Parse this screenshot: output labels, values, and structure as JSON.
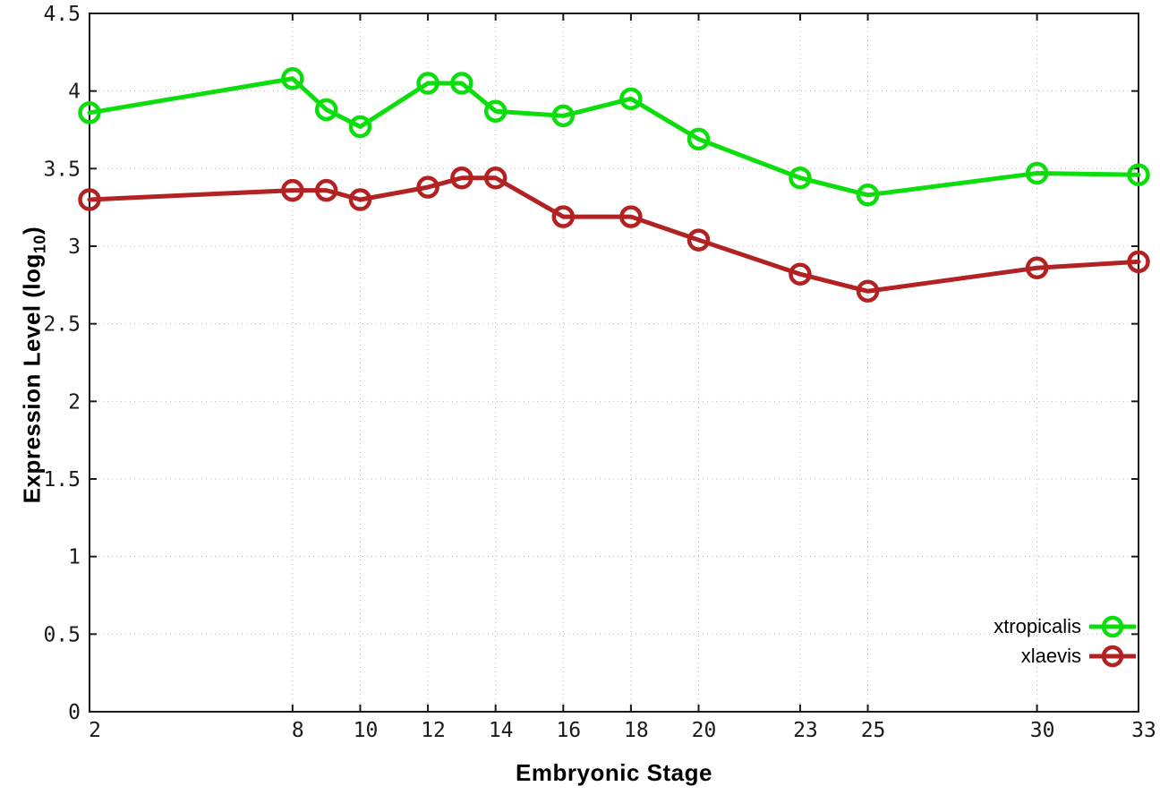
{
  "chart_data": {
    "type": "line",
    "title": "",
    "xlabel": "Embryonic Stage",
    "ylabel": {
      "prefix": "Expression Level (log",
      "subscript": "10",
      "suffix": ")"
    },
    "xlim": [
      2,
      33
    ],
    "ylim": [
      0,
      4.5
    ],
    "xticks": [
      2,
      8,
      10,
      12,
      14,
      16,
      18,
      20,
      23,
      25,
      30,
      33
    ],
    "yticks": [
      0,
      0.5,
      1,
      1.5,
      2,
      2.5,
      3,
      3.5,
      4,
      4.5
    ],
    "grid": true,
    "legend_position": "bottom-right",
    "x": [
      2,
      8,
      9,
      10,
      12,
      13,
      14,
      16,
      18,
      20,
      23,
      25,
      30,
      33
    ],
    "series": [
      {
        "name": "xtropicalis",
        "color": "#0cdd0c",
        "values": [
          3.86,
          4.08,
          3.88,
          3.77,
          4.05,
          4.05,
          3.87,
          3.84,
          3.95,
          3.69,
          3.44,
          3.33,
          3.47,
          3.46
        ]
      },
      {
        "name": "xlaevis",
        "color": "#b22222",
        "values": [
          3.3,
          3.36,
          3.36,
          3.3,
          3.38,
          3.44,
          3.44,
          3.19,
          3.19,
          3.04,
          2.82,
          2.71,
          2.86,
          2.9
        ]
      }
    ],
    "colors": {
      "grid": "#b8b8b8",
      "border": "#1a1a1a",
      "text": "#000000"
    }
  }
}
